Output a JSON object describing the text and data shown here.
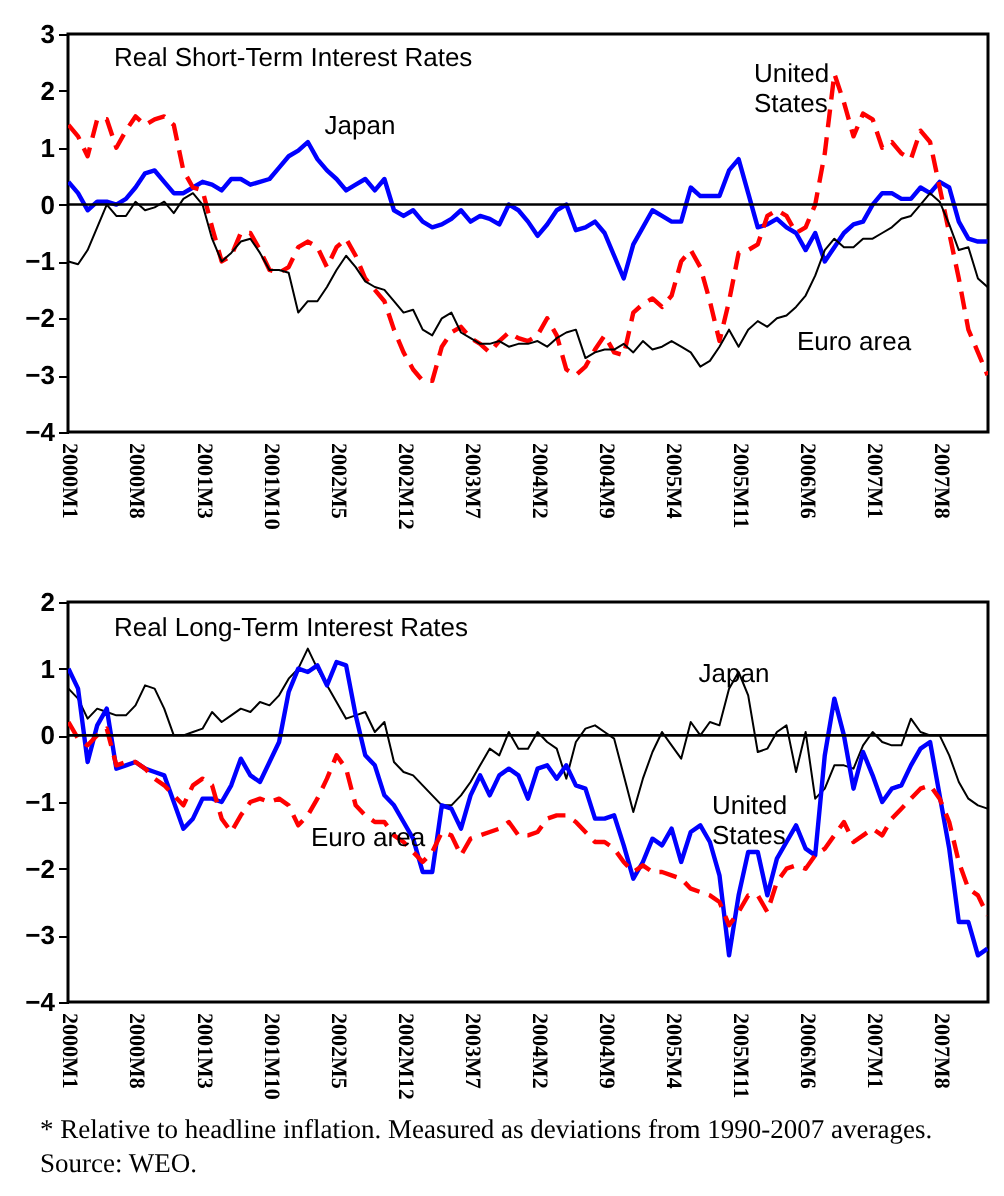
{
  "chart_data": [
    {
      "type": "line",
      "title": "Real Short-Term Interest Rates",
      "categories": [
        "2000M1",
        null,
        null,
        null,
        null,
        null,
        null,
        "2000M8",
        null,
        null,
        null,
        null,
        null,
        null,
        "2001M3",
        null,
        null,
        null,
        null,
        null,
        null,
        "2001M10",
        null,
        null,
        null,
        null,
        null,
        null,
        "2002M5",
        null,
        null,
        null,
        null,
        null,
        null,
        "2002M12",
        null,
        null,
        null,
        null,
        null,
        null,
        "2003M7",
        null,
        null,
        null,
        null,
        null,
        null,
        "2004M2",
        null,
        null,
        null,
        null,
        null,
        null,
        "2004M9",
        null,
        null,
        null,
        null,
        null,
        null,
        "2005M4",
        null,
        null,
        null,
        null,
        null,
        null,
        "2005M11",
        null,
        null,
        null,
        null,
        null,
        null,
        "2006M6",
        null,
        null,
        null,
        null,
        null,
        null,
        "2007M1",
        null,
        null,
        null,
        null,
        null,
        null,
        "2007M8",
        null,
        null,
        null,
        null,
        null
      ],
      "series": [
        {
          "name": "Japan",
          "color": "#0000ff",
          "line_style": "solid",
          "values": [
            0.4,
            0.2,
            -0.1,
            0.05,
            0.05,
            0,
            0.1,
            0.3,
            0.55,
            0.6,
            0.4,
            0.2,
            0.2,
            0.3,
            0.4,
            0.35,
            0.25,
            0.45,
            0.45,
            0.35,
            0.4,
            0.45,
            0.65,
            0.85,
            0.95,
            1.1,
            0.8,
            0.6,
            0.45,
            0.25,
            0.35,
            0.45,
            0.25,
            0.45,
            -0.1,
            -0.2,
            -0.1,
            -0.3,
            -0.4,
            -0.35,
            -0.25,
            -0.1,
            -0.3,
            -0.2,
            -0.25,
            -0.35,
            0,
            -0.1,
            -0.3,
            -0.55,
            -0.35,
            -0.1,
            0,
            -0.45,
            -0.4,
            -0.3,
            -0.5,
            -0.9,
            -1.3,
            -0.7,
            -0.4,
            -0.1,
            -0.2,
            -0.3,
            -0.3,
            0.3,
            0.15,
            0.15,
            0.15,
            0.6,
            0.8,
            0.2,
            -0.4,
            -0.35,
            -0.25,
            -0.4,
            -0.5,
            -0.8,
            -0.5,
            -1.0,
            -0.75,
            -0.5,
            -0.35,
            -0.3,
            0,
            0.2,
            0.2,
            0.1,
            0.1,
            0.3,
            0.2,
            0.4,
            0.3,
            -0.3,
            -0.6,
            -0.65,
            -0.65
          ]
        },
        {
          "name": "United States",
          "color": "#ff0000",
          "line_style": "dashed",
          "values": [
            1.4,
            1.2,
            0.85,
            1.5,
            1.5,
            1.0,
            1.3,
            1.55,
            1.4,
            1.5,
            1.55,
            1.4,
            0.6,
            0.3,
            0.25,
            -0.4,
            -1.0,
            -0.9,
            -0.5,
            -0.5,
            -0.8,
            -1.15,
            -1.2,
            -1.1,
            -0.75,
            -0.65,
            -0.75,
            -1.1,
            -0.75,
            -0.6,
            -0.9,
            -1.3,
            -1.5,
            -1.7,
            -2.2,
            -2.6,
            -2.9,
            -3.1,
            -3.1,
            -2.5,
            -2.25,
            -2.15,
            -2.35,
            -2.45,
            -2.6,
            -2.4,
            -2.25,
            -2.35,
            -2.4,
            -2.3,
            -2.0,
            -2.3,
            -2.9,
            -3.0,
            -2.85,
            -2.55,
            -2.3,
            -2.6,
            -2.65,
            -1.9,
            -1.75,
            -1.65,
            -1.8,
            -1.6,
            -1.0,
            -0.8,
            -1.1,
            -1.7,
            -2.4,
            -1.7,
            -0.85,
            -0.8,
            -0.7,
            -0.2,
            -0.1,
            -0.2,
            -0.5,
            -0.4,
            0.0,
            0.9,
            2.3,
            1.8,
            1.2,
            1.6,
            1.5,
            1.0,
            1.1,
            0.9,
            0.8,
            1.3,
            1.1,
            0.3,
            -0.5,
            -1.3,
            -2.2,
            -2.6,
            -3.0
          ]
        },
        {
          "name": "Euro area",
          "color": "#000000",
          "line_style": "solid",
          "values": [
            -1.0,
            -1.05,
            -0.8,
            -0.4,
            0,
            -0.2,
            -0.2,
            0.05,
            -0.1,
            -0.05,
            0.05,
            -0.15,
            0.1,
            0.2,
            0,
            -0.6,
            -1.0,
            -0.85,
            -0.65,
            -0.6,
            -0.85,
            -1.15,
            -1.15,
            -1.2,
            -1.9,
            -1.7,
            -1.7,
            -1.45,
            -1.15,
            -0.9,
            -1.1,
            -1.35,
            -1.45,
            -1.5,
            -1.7,
            -1.9,
            -1.85,
            -2.2,
            -2.3,
            -2.0,
            -1.9,
            -2.25,
            -2.35,
            -2.45,
            -2.45,
            -2.4,
            -2.5,
            -2.45,
            -2.45,
            -2.4,
            -2.5,
            -2.35,
            -2.25,
            -2.2,
            -2.7,
            -2.6,
            -2.55,
            -2.55,
            -2.45,
            -2.6,
            -2.4,
            -2.55,
            -2.5,
            -2.4,
            -2.5,
            -2.6,
            -2.85,
            -2.75,
            -2.5,
            -2.2,
            -2.5,
            -2.2,
            -2.05,
            -2.15,
            -2.0,
            -1.95,
            -1.8,
            -1.6,
            -1.25,
            -0.8,
            -0.6,
            -0.75,
            -0.75,
            -0.6,
            -0.6,
            -0.5,
            -0.4,
            -0.25,
            -0.2,
            0,
            0.2,
            0.05,
            -0.35,
            -0.8,
            -0.75,
            -1.3,
            -1.45
          ]
        }
      ],
      "ylim": [
        -4,
        3
      ],
      "yticks": [
        -4,
        -3,
        -2,
        -1,
        0,
        1,
        2,
        3
      ],
      "ref_lines": [
        {
          "axis": "y",
          "value": 0,
          "color": "#000000"
        }
      ]
    },
    {
      "type": "line",
      "title": "Real Long-Term Interest Rates",
      "categories": [
        "2000M1",
        null,
        null,
        null,
        null,
        null,
        null,
        "2000M8",
        null,
        null,
        null,
        null,
        null,
        null,
        "2001M3",
        null,
        null,
        null,
        null,
        null,
        null,
        "2001M10",
        null,
        null,
        null,
        null,
        null,
        null,
        "2002M5",
        null,
        null,
        null,
        null,
        null,
        null,
        "2002M12",
        null,
        null,
        null,
        null,
        null,
        null,
        "2003M7",
        null,
        null,
        null,
        null,
        null,
        null,
        "2004M2",
        null,
        null,
        null,
        null,
        null,
        null,
        "2004M9",
        null,
        null,
        null,
        null,
        null,
        null,
        "2005M4",
        null,
        null,
        null,
        null,
        null,
        null,
        "2005M11",
        null,
        null,
        null,
        null,
        null,
        null,
        "2006M6",
        null,
        null,
        null,
        null,
        null,
        null,
        "2007M1",
        null,
        null,
        null,
        null,
        null,
        null,
        "2007M8",
        null,
        null,
        null,
        null,
        null
      ],
      "series": [
        {
          "name": "Japan",
          "color": "#000000",
          "line_style": "solid",
          "values": [
            0.7,
            0.55,
            0.25,
            0.4,
            0.35,
            0.3,
            0.3,
            0.45,
            0.75,
            0.7,
            0.4,
            0,
            0,
            0.05,
            0.1,
            0.35,
            0.2,
            0.3,
            0.4,
            0.35,
            0.5,
            0.45,
            0.6,
            0.85,
            1.0,
            1.3,
            1.0,
            0.75,
            0.5,
            0.25,
            0.3,
            0.35,
            0.05,
            0.2,
            -0.4,
            -0.55,
            -0.6,
            -0.75,
            -0.9,
            -1.05,
            -1.05,
            -0.9,
            -0.7,
            -0.45,
            -0.2,
            -0.3,
            0.05,
            -0.2,
            -0.2,
            0.05,
            -0.1,
            -0.2,
            -0.65,
            -0.1,
            0.1,
            0.15,
            0.05,
            -0.05,
            -0.6,
            -1.15,
            -0.65,
            -0.25,
            0.05,
            -0.15,
            -0.35,
            0.2,
            0,
            0.2,
            0.15,
            0.7,
            0.95,
            0.6,
            -0.25,
            -0.2,
            0.05,
            0.15,
            -0.55,
            0.05,
            -0.95,
            -0.8,
            -0.45,
            -0.45,
            -0.5,
            -0.15,
            0.05,
            -0.1,
            -0.15,
            -0.15,
            0.25,
            0.05,
            0,
            0,
            -0.3,
            -0.7,
            -0.95,
            -1.05,
            -1.1
          ]
        },
        {
          "name": "United States",
          "color": "#0000ff",
          "line_style": "solid",
          "values": [
            1.0,
            0.7,
            -0.4,
            0.15,
            0.4,
            -0.5,
            -0.45,
            -0.4,
            -0.5,
            -0.55,
            -0.6,
            -1.0,
            -1.4,
            -1.25,
            -0.95,
            -0.95,
            -1.0,
            -0.75,
            -0.35,
            -0.6,
            -0.7,
            -0.4,
            -0.1,
            0.65,
            1.0,
            0.95,
            1.05,
            0.75,
            1.1,
            1.05,
            0.3,
            -0.3,
            -0.45,
            -0.9,
            -1.05,
            -1.3,
            -1.55,
            -2.05,
            -2.05,
            -1.05,
            -1.1,
            -1.4,
            -0.9,
            -0.6,
            -0.9,
            -0.6,
            -0.5,
            -0.6,
            -0.95,
            -0.5,
            -0.45,
            -0.65,
            -0.45,
            -0.75,
            -0.8,
            -1.25,
            -1.25,
            -1.2,
            -1.65,
            -2.15,
            -1.9,
            -1.55,
            -1.65,
            -1.4,
            -1.9,
            -1.45,
            -1.35,
            -1.6,
            -2.1,
            -3.3,
            -2.4,
            -1.75,
            -1.75,
            -2.4,
            -1.85,
            -1.6,
            -1.35,
            -1.7,
            -1.8,
            -0.3,
            0.55,
            0.0,
            -0.8,
            -0.25,
            -0.6,
            -1.0,
            -0.8,
            -0.75,
            -0.45,
            -0.2,
            -0.1,
            -0.9,
            -1.7,
            -2.8,
            -2.8,
            -3.3,
            -3.2
          ]
        },
        {
          "name": "Euro area",
          "color": "#ff0000",
          "line_style": "dashed",
          "values": [
            0.2,
            -0.05,
            -0.15,
            0,
            0.1,
            -0.45,
            -0.4,
            -0.4,
            -0.5,
            -0.65,
            -0.75,
            -0.9,
            -1.05,
            -0.75,
            -0.65,
            -0.75,
            -1.25,
            -1.45,
            -1.2,
            -1.0,
            -0.95,
            -1.0,
            -0.95,
            -1.05,
            -1.35,
            -1.2,
            -0.95,
            -0.65,
            -0.3,
            -0.5,
            -1.05,
            -1.2,
            -1.3,
            -1.3,
            -1.5,
            -1.6,
            -1.75,
            -1.9,
            -1.75,
            -1.45,
            -1.5,
            -1.8,
            -1.55,
            -1.5,
            -1.45,
            -1.4,
            -1.3,
            -1.5,
            -1.5,
            -1.45,
            -1.25,
            -1.2,
            -1.2,
            -1.3,
            -1.45,
            -1.6,
            -1.6,
            -1.7,
            -1.9,
            -2.05,
            -1.95,
            -2.05,
            -2.05,
            -2.1,
            -2.15,
            -2.3,
            -2.35,
            -2.4,
            -2.5,
            -2.85,
            -2.65,
            -2.4,
            -2.4,
            -2.65,
            -2.2,
            -2.0,
            -1.95,
            -2.0,
            -1.8,
            -1.7,
            -1.5,
            -1.3,
            -1.6,
            -1.5,
            -1.4,
            -1.5,
            -1.25,
            -1.1,
            -0.95,
            -0.8,
            -0.75,
            -0.95,
            -1.3,
            -1.9,
            -2.3,
            -2.4,
            -2.7
          ]
        }
      ],
      "ylim": [
        -4,
        2
      ],
      "yticks": [
        -4,
        -3,
        -2,
        -1,
        0,
        1,
        2
      ],
      "ref_lines": [
        {
          "axis": "y",
          "value": 0,
          "color": "#000000"
        }
      ],
      "annotations": [
        "* Relative to headline inflation. Measured as deviations from 1990-2007 averages. Source: WEO."
      ]
    }
  ]
}
